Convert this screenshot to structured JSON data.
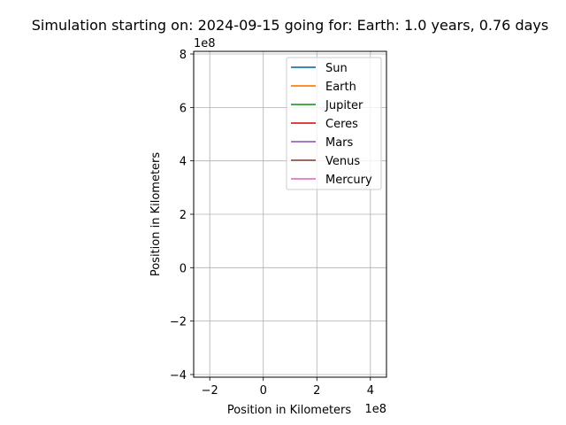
{
  "chart_data": {
    "type": "line",
    "title": "Simulation starting on: 2024-09-15 going for: Earth: 1.0 years, 0.76 days",
    "xlabel": "Position in Kilometers",
    "ylabel": "Position in Kilometers",
    "x_offset_text": "1e8",
    "y_offset_text": "1e8",
    "xlim": [
      -2.6,
      4.6
    ],
    "ylim": [
      -4.1,
      8.1
    ],
    "x_ticks": [
      -2,
      0,
      2,
      4
    ],
    "x_tick_labels": [
      "−2",
      "0",
      "2",
      "4"
    ],
    "y_ticks": [
      -4,
      -2,
      0,
      2,
      4,
      6,
      8
    ],
    "y_tick_labels": [
      "−4",
      "−2",
      "0",
      "2",
      "4",
      "6",
      "8"
    ],
    "grid": true,
    "legend_position": "top-right",
    "series": [
      {
        "name": "Sun",
        "color": "#1f77b4"
      },
      {
        "name": "Earth",
        "color": "#ff7f0e"
      },
      {
        "name": "Jupiter",
        "color": "#2ca02c"
      },
      {
        "name": "Ceres",
        "color": "#d62728"
      },
      {
        "name": "Mars",
        "color": "#9467bd"
      },
      {
        "name": "Venus",
        "color": "#8c564b"
      },
      {
        "name": "Mercury",
        "color": "#e377c2"
      }
    ]
  }
}
